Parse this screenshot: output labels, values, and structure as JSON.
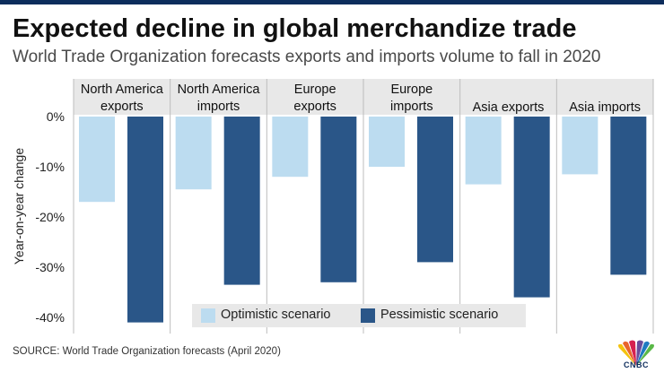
{
  "header": {
    "title": "Expected decline in global merchandize trade",
    "subtitle": "World Trade Organization forecasts exports and imports volume to fall in 2020"
  },
  "footer": {
    "source": "SOURCE: World Trade Organization forecasts (April 2020)",
    "logo_text": "CNBC"
  },
  "colors": {
    "optimistic": "#bcdcf0",
    "pessimistic": "#2a5688",
    "header_band": "#e8e8e8",
    "brand_bar": "#0d2d5c"
  },
  "chart_data": {
    "type": "bar",
    "title": "Expected decline in global merchandize trade",
    "categories": [
      "North America exports",
      "North America imports",
      "Europe exports",
      "Europe imports",
      "Asia exports",
      "Asia imports"
    ],
    "category_labels": [
      [
        "North America",
        "exports"
      ],
      [
        "North America",
        "imports"
      ],
      [
        "Europe",
        "exports"
      ],
      [
        "Europe",
        "imports"
      ],
      [
        "Asia exports"
      ],
      [
        "Asia imports"
      ]
    ],
    "series": [
      {
        "name": "Optimistic scenario",
        "values": [
          -17,
          -14.5,
          -12,
          -10,
          -13.5,
          -11.5
        ]
      },
      {
        "name": "Pessimistic scenario",
        "values": [
          -41,
          -33.5,
          -33,
          -29,
          -36,
          -31.5
        ]
      }
    ],
    "ylabel": "Year-on-year change",
    "xlabel": "",
    "ylim": [
      -42,
      0
    ],
    "yticks": [
      0,
      -10,
      -20,
      -30,
      -40
    ],
    "ytick_labels": [
      "0%",
      "-10%",
      "-20%",
      "-30%",
      "-40%"
    ],
    "legend_position": "bottom-center"
  }
}
